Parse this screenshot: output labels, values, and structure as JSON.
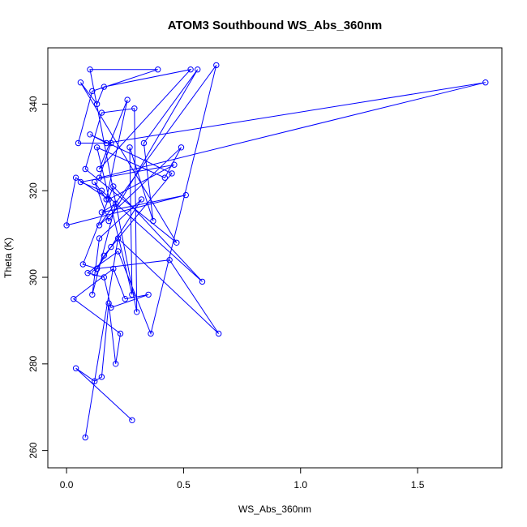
{
  "chart_data": {
    "type": "line",
    "title": "ATOM3 Southbound WS_Abs_360nm",
    "xlabel": "WS_Abs_360nm",
    "ylabel": "Theta (K)",
    "xlim": [
      -0.08,
      1.86
    ],
    "ylim": [
      256,
      353
    ],
    "xticks": [
      0.0,
      0.5,
      1.0,
      1.5
    ],
    "xtick_labels": [
      "0.0",
      "0.5",
      "1.0",
      "1.5"
    ],
    "yticks": [
      260,
      280,
      300,
      320,
      340
    ],
    "ytick_labels": [
      "260",
      "280",
      "300",
      "320",
      "340"
    ],
    "grid": false,
    "series": [
      {
        "color": "#0000ff",
        "marker": "open-circle",
        "x": [
          0.28,
          0.04,
          0.12,
          0.15,
          0.18,
          0.21,
          0.23,
          0.03,
          0.2,
          0.25,
          0.35,
          0.19,
          0.16,
          0.09,
          0.22,
          0.36,
          0.64,
          0.14,
          0.49,
          0.42,
          0.13,
          0.28,
          0.27,
          0.37,
          0.33,
          0.56,
          0.18,
          0.12,
          0.17,
          0.26,
          0.14,
          0.53,
          0.16,
          0.13,
          0.06,
          0.47,
          0.08,
          0.15,
          0.29,
          0.3,
          0.1,
          0.39,
          0.11,
          0.05,
          0.19,
          0.14,
          1.79,
          0.17,
          0.1,
          0.45,
          0.16,
          0.12,
          0.13,
          0.07,
          0.2,
          0.58,
          0.15,
          0.06,
          0.46,
          0.18,
          0.04,
          0.0,
          0.51,
          0.15,
          0.21,
          0.11,
          0.14,
          0.32,
          0.19,
          0.13,
          0.44,
          0.65,
          0.22,
          0.08
        ],
        "y": [
          267,
          279,
          276,
          277,
          294,
          280,
          287,
          295,
          302,
          295,
          296,
          293,
          300,
          301,
          306,
          287,
          349,
          312,
          330,
          323,
          330,
          296,
          330,
          313,
          331,
          348,
          313,
          322,
          318,
          341,
          325,
          348,
          344,
          340,
          345,
          308,
          325,
          338,
          339,
          292,
          348,
          348,
          343,
          331,
          331,
          323,
          345,
          331,
          333,
          324,
          305,
          301,
          302,
          303,
          321,
          299,
          320,
          322,
          326,
          318,
          323,
          312,
          319,
          315,
          317,
          296,
          309,
          318,
          307,
          302,
          304,
          287,
          309,
          263
        ]
      }
    ]
  }
}
